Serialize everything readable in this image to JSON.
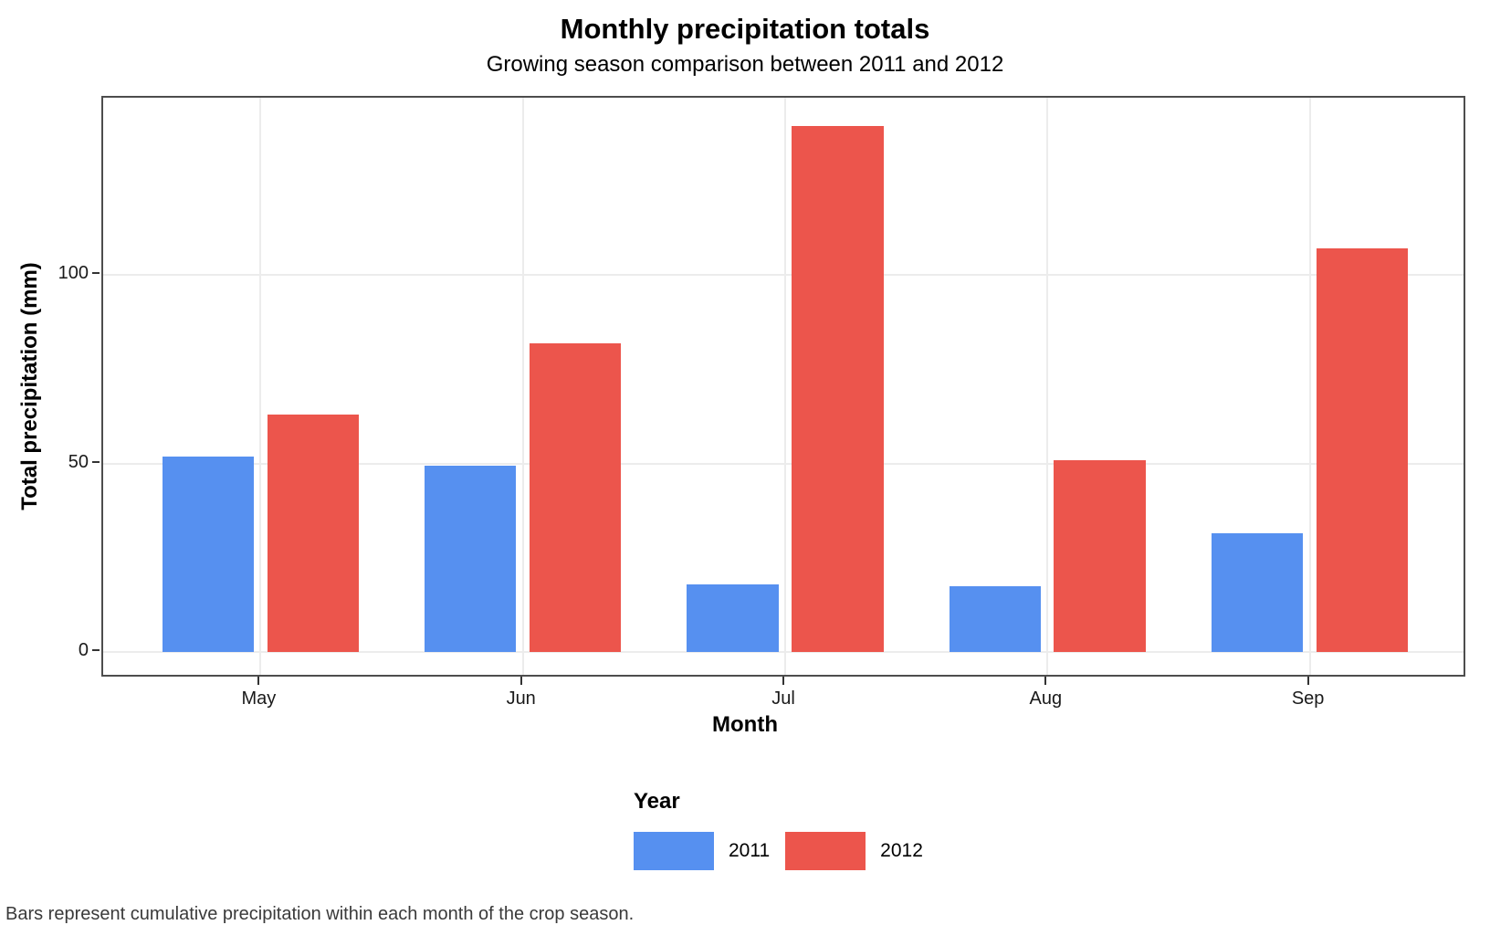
{
  "chart_data": {
    "type": "bar",
    "title": "Monthly precipitation totals",
    "subtitle": "Growing season comparison between 2011 and 2012",
    "xlabel": "Month",
    "ylabel": "Total precipitation (mm)",
    "caption": "Bars represent cumulative precipitation within each month of the crop season.",
    "categories": [
      "May",
      "Jun",
      "Jul",
      "Aug",
      "Sep"
    ],
    "series": [
      {
        "name": "2011",
        "color": "#5690F0",
        "values": [
          52,
          49.5,
          18,
          17.5,
          31.5
        ]
      },
      {
        "name": "2012",
        "color": "#EC554C",
        "values": [
          63,
          82,
          139.5,
          51,
          107
        ]
      }
    ],
    "y_ticks": [
      0,
      50,
      100
    ],
    "ylim": [
      -6.9,
      147
    ],
    "legend_title": "Year",
    "legend_position": "bottom",
    "grid": true,
    "colors": {
      "gridline": "#ECECEC",
      "panel_border": "#4D4D4D",
      "tick_mark": "#333333",
      "caption_text": "#3A3A3A"
    }
  }
}
